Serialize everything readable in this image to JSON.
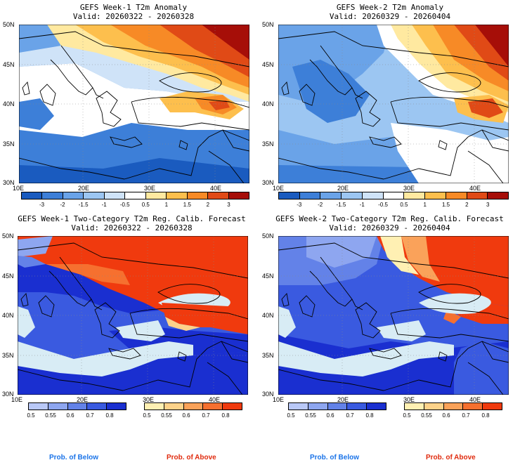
{
  "panels": [
    {
      "title": "GEFS Week-1 T2m Anomaly",
      "valid": "Valid: 20260322 - 20260328"
    },
    {
      "title": "GEFS Week-2 T2m Anomaly",
      "valid": "Valid: 20260329 - 20260404"
    },
    {
      "title": "GEFS Week-1 Two-Category T2m Reg. Calib. Forecast",
      "valid": "Valid: 20260322 - 20260328"
    },
    {
      "title": "GEFS Week-2 Two-Category T2m Reg. Calib. Forecast",
      "valid": "Valid: 20260329 - 20260404"
    }
  ],
  "lat_labels": [
    "50N",
    "45N",
    "40N",
    "35N",
    "30N"
  ],
  "lon_labels": [
    "10E",
    "20E",
    "30E",
    "40E"
  ],
  "anomaly_scale": {
    "labels": [
      "-3",
      "-2",
      "-1.5",
      "-1",
      "-0.5",
      "0.5",
      "1",
      "1.5",
      "2",
      "3"
    ],
    "colors": [
      "#1a5bbf",
      "#3d7fd8",
      "#6aa3e8",
      "#9cc6f2",
      "#cfe3f8",
      "#ffffff",
      "#ffe9a0",
      "#fdbf4d",
      "#f78a26",
      "#e04a16",
      "#a60e08"
    ]
  },
  "prob_below": {
    "labels": [
      "0.5",
      "0.55",
      "0.6",
      "0.7",
      "0.8"
    ],
    "colors": [
      "#b9c8f7",
      "#8ea6f0",
      "#6382e8",
      "#3a5ae0",
      "#1a2fd0"
    ],
    "caption": "Prob. of Below",
    "caption_color": "#1a73e8"
  },
  "prob_above": {
    "labels": [
      "0.5",
      "0.55",
      "0.6",
      "0.7",
      "0.8"
    ],
    "colors": [
      "#fff0b3",
      "#fdd28a",
      "#faa25a",
      "#f6702f",
      "#f03a0e"
    ],
    "caption": "Prob. of Above",
    "caption_color": "#e02b0e"
  }
}
